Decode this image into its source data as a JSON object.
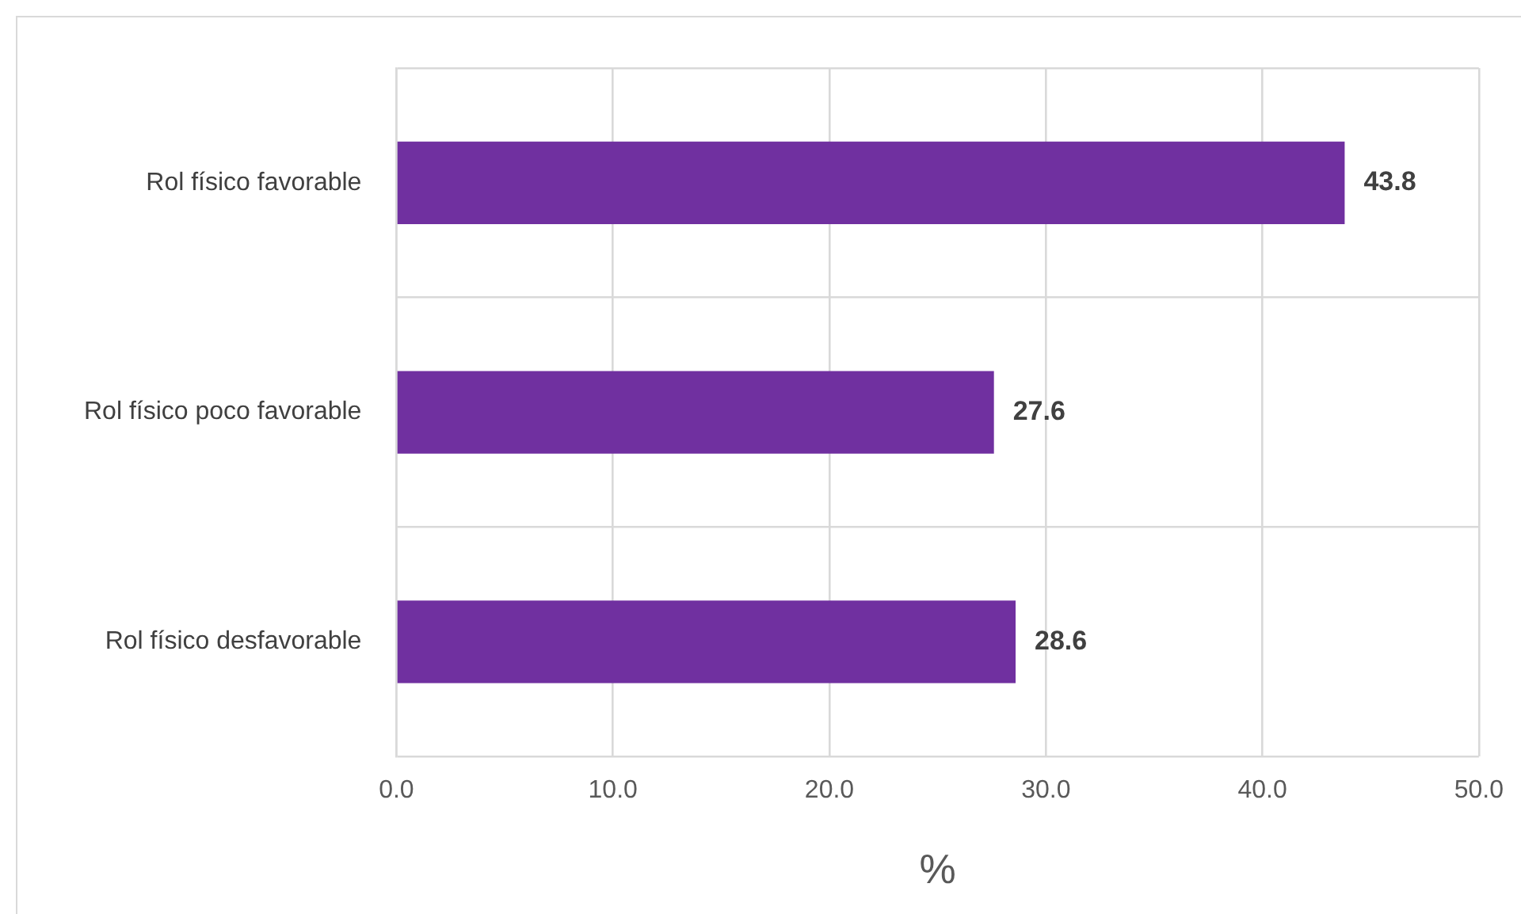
{
  "chart_data": {
    "type": "bar",
    "orientation": "horizontal",
    "xlabel": "%",
    "categories": [
      "Rol físico favorable",
      "Rol físico poco favorable",
      "Rol físico desfavorable"
    ],
    "values": [
      43.8,
      27.6,
      28.6
    ],
    "color": "#7030a0",
    "xlim": [
      0,
      50
    ],
    "xticks": [
      {
        "value": 0,
        "label": "0.0"
      },
      {
        "value": 10,
        "label": "10.0"
      },
      {
        "value": 20,
        "label": "20.0"
      },
      {
        "value": 30,
        "label": "30.0"
      },
      {
        "value": 40,
        "label": "40.0"
      },
      {
        "value": 50,
        "label": "50.0"
      }
    ],
    "grid": true,
    "legend": false,
    "data_labels": true
  }
}
